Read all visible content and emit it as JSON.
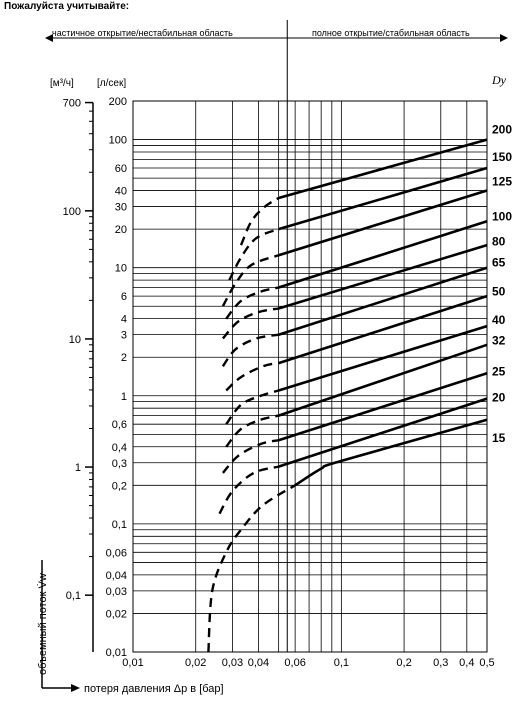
{
  "header": {
    "title": "Пожалуйста учитывайте:"
  },
  "regions": {
    "left": "частичное открытие/нестабильная область",
    "right": "полное открытие/стабильная область"
  },
  "axes": {
    "m3h_unit": "[м³/ч]",
    "ls_unit": "[л/сек]",
    "dn_label": "Dy",
    "y_title": "объемный поток V̇w",
    "x_title": "потеря давления Δp в [бар]"
  },
  "chart_data": {
    "type": "line",
    "x_scale": "log",
    "y_scale": "log",
    "xlim": [
      0.01,
      0.5
    ],
    "ylim": [
      0.01,
      200
    ],
    "x_ticks": [
      {
        "v": 0.01,
        "label": "0,01"
      },
      {
        "v": 0.02,
        "label": "0,02"
      },
      {
        "v": 0.03,
        "label": "0,03"
      },
      {
        "v": 0.04,
        "label": "0,04"
      },
      {
        "v": 0.06,
        "label": "0,06"
      },
      {
        "v": 0.1,
        "label": "0,1"
      },
      {
        "v": 0.2,
        "label": "0,2"
      },
      {
        "v": 0.3,
        "label": "0,3"
      },
      {
        "v": 0.4,
        "label": "0,4"
      },
      {
        "v": 0.5,
        "label": "0,5"
      }
    ],
    "x_grid": [
      0.01,
      0.02,
      0.03,
      0.04,
      0.05,
      0.06,
      0.07,
      0.08,
      0.09,
      0.1,
      0.2,
      0.3,
      0.4,
      0.5
    ],
    "y_ticks": [
      {
        "v": 200,
        "label": "200"
      },
      {
        "v": 100,
        "label": "100"
      },
      {
        "v": 60,
        "label": "60"
      },
      {
        "v": 40,
        "label": "40"
      },
      {
        "v": 30,
        "label": "30"
      },
      {
        "v": 20,
        "label": "20"
      },
      {
        "v": 10,
        "label": "10"
      },
      {
        "v": 6,
        "label": "6"
      },
      {
        "v": 4,
        "label": "4"
      },
      {
        "v": 3,
        "label": "3"
      },
      {
        "v": 2,
        "label": "2"
      },
      {
        "v": 1,
        "label": "1"
      },
      {
        "v": 0.6,
        "label": "0,6"
      },
      {
        "v": 0.4,
        "label": "0,4"
      },
      {
        "v": 0.3,
        "label": "0,3"
      },
      {
        "v": 0.2,
        "label": "0,2"
      },
      {
        "v": 0.1,
        "label": "0,1"
      },
      {
        "v": 0.06,
        "label": "0,06"
      },
      {
        "v": 0.04,
        "label": "0,04"
      },
      {
        "v": 0.03,
        "label": "0,03"
      },
      {
        "v": 0.02,
        "label": "0,02"
      },
      {
        "v": 0.01,
        "label": "0,01"
      }
    ],
    "y_grid": [
      0.01,
      0.02,
      0.03,
      0.04,
      0.05,
      0.06,
      0.07,
      0.08,
      0.09,
      0.1,
      0.2,
      0.3,
      0.4,
      0.5,
      0.6,
      0.7,
      0.8,
      0.9,
      1,
      2,
      3,
      4,
      5,
      6,
      7,
      8,
      9,
      10,
      20,
      30,
      40,
      50,
      60,
      70,
      80,
      90,
      100,
      200
    ],
    "m3h_ticks": [
      {
        "v": 700,
        "label": "700"
      },
      {
        "v": 100,
        "label": "100"
      },
      {
        "v": 10,
        "label": "10"
      },
      {
        "v": 1,
        "label": "1"
      },
      {
        "v": 0.1,
        "label": "0,1"
      }
    ],
    "transition_x": 0.055,
    "series": [
      {
        "name": "200",
        "solid": [
          [
            0.05,
            35
          ],
          [
            0.5,
            100
          ]
        ],
        "curve": [
          [
            0.033,
            15
          ],
          [
            0.037,
            23
          ],
          [
            0.043,
            30
          ],
          [
            0.05,
            35
          ]
        ]
      },
      {
        "name": "150",
        "solid": [
          [
            0.05,
            20
          ],
          [
            0.5,
            60
          ]
        ],
        "curve": [
          [
            0.029,
            8
          ],
          [
            0.033,
            12
          ],
          [
            0.039,
            17
          ],
          [
            0.05,
            20
          ]
        ]
      },
      {
        "name": "125",
        "solid": [
          [
            0.05,
            12.5
          ],
          [
            0.5,
            40
          ]
        ],
        "curve": [
          [
            0.027,
            5
          ],
          [
            0.031,
            7.5
          ],
          [
            0.037,
            10.5
          ],
          [
            0.05,
            12.5
          ]
        ]
      },
      {
        "name": "100",
        "solid": [
          [
            0.05,
            7
          ],
          [
            0.5,
            23
          ]
        ],
        "curve": [
          [
            0.028,
            4
          ],
          [
            0.033,
            5.5
          ],
          [
            0.041,
            6.5
          ],
          [
            0.05,
            7
          ]
        ]
      },
      {
        "name": "80",
        "solid": [
          [
            0.05,
            4.8
          ],
          [
            0.5,
            15
          ]
        ],
        "curve": [
          [
            0.027,
            2.8
          ],
          [
            0.032,
            3.8
          ],
          [
            0.04,
            4.5
          ],
          [
            0.05,
            4.8
          ]
        ]
      },
      {
        "name": "65",
        "solid": [
          [
            0.05,
            3
          ],
          [
            0.5,
            10
          ]
        ],
        "curve": [
          [
            0.027,
            1.7
          ],
          [
            0.031,
            2.3
          ],
          [
            0.039,
            2.8
          ],
          [
            0.05,
            3
          ]
        ]
      },
      {
        "name": "50",
        "solid": [
          [
            0.05,
            1.8
          ],
          [
            0.5,
            6
          ]
        ],
        "curve": [
          [
            0.028,
            1.1
          ],
          [
            0.033,
            1.4
          ],
          [
            0.042,
            1.7
          ],
          [
            0.05,
            1.8
          ]
        ]
      },
      {
        "name": "40",
        "solid": [
          [
            0.05,
            1.1
          ],
          [
            0.5,
            3.5
          ]
        ],
        "curve": [
          [
            0.028,
            0.6
          ],
          [
            0.033,
            0.85
          ],
          [
            0.041,
            1
          ],
          [
            0.05,
            1.1
          ]
        ]
      },
      {
        "name": "32",
        "solid": [
          [
            0.05,
            0.7
          ],
          [
            0.5,
            2.5
          ]
        ],
        "curve": [
          [
            0.028,
            0.4
          ],
          [
            0.033,
            0.55
          ],
          [
            0.041,
            0.65
          ],
          [
            0.05,
            0.7
          ]
        ]
      },
      {
        "name": "25",
        "solid": [
          [
            0.05,
            0.45
          ],
          [
            0.5,
            1.5
          ]
        ],
        "curve": [
          [
            0.027,
            0.25
          ],
          [
            0.032,
            0.34
          ],
          [
            0.041,
            0.42
          ],
          [
            0.05,
            0.45
          ]
        ]
      },
      {
        "name": "20",
        "solid": [
          [
            0.05,
            0.28
          ],
          [
            0.5,
            0.95
          ]
        ],
        "curve": [
          [
            0.026,
            0.12
          ],
          [
            0.03,
            0.18
          ],
          [
            0.038,
            0.25
          ],
          [
            0.05,
            0.28
          ]
        ]
      },
      {
        "name": "15",
        "solid": [
          [
            0.06,
            0.2
          ],
          [
            0.08,
            0.27
          ],
          [
            0.1,
            0.31
          ],
          [
            0.5,
            0.65
          ]
        ],
        "curve": [
          [
            0.023,
            0.01
          ],
          [
            0.024,
            0.03
          ],
          [
            0.028,
            0.06
          ],
          [
            0.033,
            0.09
          ],
          [
            0.042,
            0.14
          ],
          [
            0.06,
            0.2
          ]
        ]
      }
    ],
    "series_label_y": {
      "200": 120,
      "150": 73,
      "125": 47,
      "100": 25,
      "80": 16,
      "65": 11,
      "50": 6.5,
      "40": 3.9,
      "32": 2.7,
      "25": 1.55,
      "20": 0.97,
      "15": 0.47
    }
  }
}
